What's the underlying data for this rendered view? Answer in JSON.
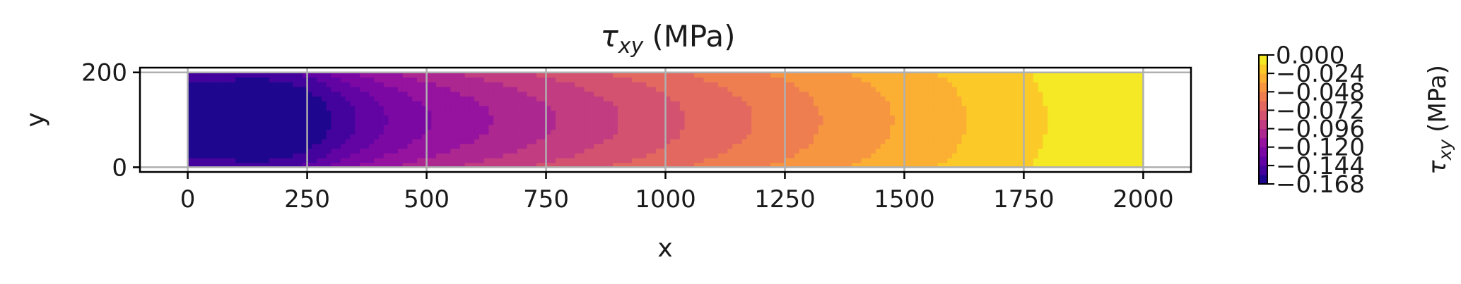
{
  "chart_data": {
    "type": "heatmap",
    "title_symbol": "τ",
    "title_subscript": "xy",
    "title_unit": "(MPa)",
    "xlabel": "x",
    "ylabel": "y",
    "xlim": [
      -100,
      2100
    ],
    "ylim": [
      -10,
      210
    ],
    "x_ticks": [
      0,
      250,
      500,
      750,
      1000,
      1250,
      1500,
      1750,
      2000
    ],
    "x_tick_labels": [
      "0",
      "250",
      "500",
      "750",
      "1000",
      "1250",
      "1500",
      "1750",
      "2000"
    ],
    "y_ticks": [
      0,
      200
    ],
    "y_tick_labels": [
      "0",
      "200"
    ],
    "grid": true,
    "colormap": "plasma",
    "domain": {
      "x": [
        0,
        2000
      ],
      "y": [
        0,
        200
      ]
    },
    "value_range": [
      -0.168,
      0.0
    ],
    "colorbar": {
      "label_symbol": "τ",
      "label_subscript": "xy",
      "label_unit": "(MPa)",
      "ticks": [
        0.0,
        -0.024,
        -0.048,
        -0.072,
        -0.096,
        -0.12,
        -0.144,
        -0.168
      ],
      "tick_labels": [
        "0.000",
        "−0.024",
        "−0.048",
        "−0.072",
        "−0.096",
        "−0.120",
        "−0.144",
        "−0.168"
      ]
    }
  }
}
